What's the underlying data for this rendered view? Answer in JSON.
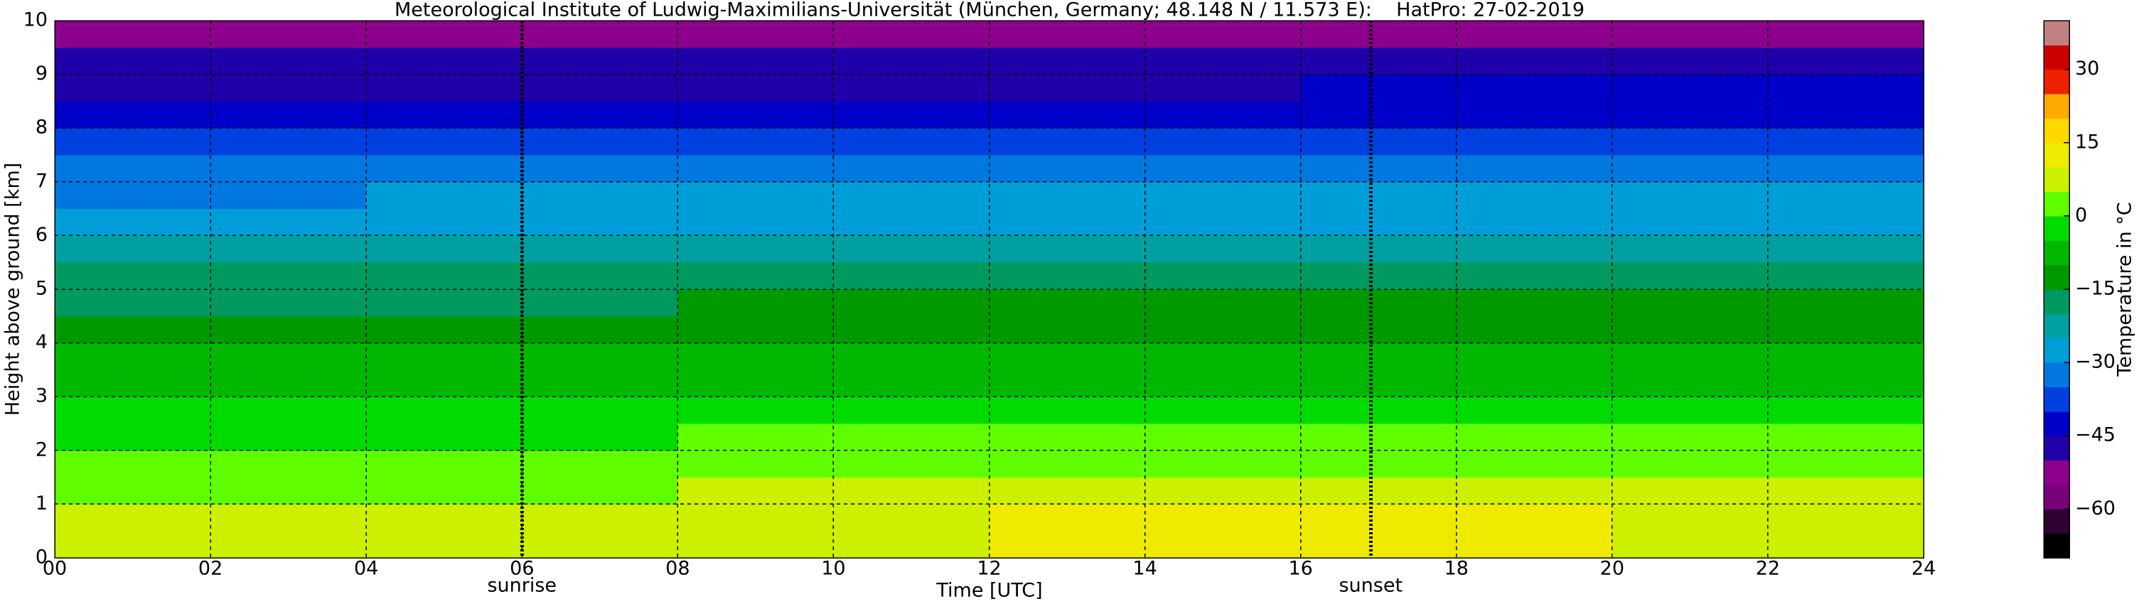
{
  "chart_data": {
    "type": "heatmap",
    "title": "Meteorological Institute of Ludwig-Maximilians-Universität (München, Germany; 48.148 N / 11.573 E):    HatPro: 27-02-2019",
    "x_label": "Time [UTC]",
    "y_label": "Height above ground [km]",
    "x": [
      0,
      4,
      8,
      12,
      16,
      20,
      24
    ],
    "y": [
      0,
      0.5,
      1,
      1.5,
      2,
      2.5,
      3,
      3.5,
      4,
      4.5,
      5,
      5.5,
      6,
      6.5,
      7,
      7.5,
      8,
      8.5,
      9,
      9.5,
      10
    ],
    "values": [
      [
        6,
        6,
        9,
        13,
        11,
        8
      ],
      [
        6,
        6,
        8,
        11,
        10,
        7
      ],
      [
        4,
        4,
        6,
        8,
        7,
        5
      ],
      [
        2,
        2,
        3,
        4,
        3,
        3
      ],
      [
        -1,
        -1,
        0,
        1,
        0,
        0
      ],
      [
        -4,
        -4,
        -3,
        -3,
        -3,
        -3
      ],
      [
        -7,
        -7,
        -6,
        -6,
        -6,
        -6
      ],
      [
        -9,
        -9,
        -9,
        -8,
        -9,
        -9
      ],
      [
        -12,
        -12,
        -12,
        -11,
        -12,
        -12
      ],
      [
        -16,
        -16,
        -15,
        -15,
        -15,
        -15
      ],
      [
        -19,
        -19,
        -18,
        -18,
        -18,
        -18
      ],
      [
        -23,
        -22,
        -22,
        -22,
        -22,
        -22
      ],
      [
        -27,
        -26,
        -26,
        -26,
        -26,
        -26
      ],
      [
        -31,
        -30,
        -30,
        -30,
        -30,
        -30
      ],
      [
        -34,
        -34,
        -34,
        -34,
        -34,
        -34
      ],
      [
        -38,
        -38,
        -38,
        -38,
        -38,
        -38
      ],
      [
        -41,
        -41,
        -41,
        -41,
        -41,
        -41
      ],
      [
        -46,
        -46,
        -46,
        -46,
        -45,
        -45
      ],
      [
        -48,
        -48,
        -48,
        -48,
        -48,
        -48
      ],
      [
        -52,
        -52,
        -52,
        -52,
        -52,
        -52
      ]
    ],
    "xlim": [
      0,
      24
    ],
    "ylim": [
      0,
      10
    ],
    "xticks": [
      {
        "value": 0,
        "label": "00"
      },
      {
        "value": 2,
        "label": "02"
      },
      {
        "value": 4,
        "label": "04"
      },
      {
        "value": 6,
        "label": "06"
      },
      {
        "value": 8,
        "label": "08"
      },
      10,
      12,
      14,
      16,
      18,
      20,
      22,
      24
    ],
    "yticks": [
      0,
      1,
      2,
      3,
      4,
      5,
      6,
      7,
      8,
      9,
      10
    ],
    "grid": true,
    "annotations": [
      {
        "text": "sunrise",
        "x": 6
      },
      {
        "text": "sunset",
        "x": 16.9
      }
    ],
    "colorbar": {
      "label": "Temperature in °C",
      "lim": [
        -70,
        40
      ],
      "ticks": [
        {
          "value": -60,
          "label": "−60"
        },
        {
          "value": -45,
          "label": "−45"
        },
        {
          "value": -30,
          "label": "−30"
        },
        {
          "value": -15,
          "label": "−15"
        },
        0,
        15,
        30
      ],
      "levels": [
        -70,
        -65,
        -60,
        -55,
        -50,
        -45,
        -40,
        -35,
        -30,
        -25,
        -20,
        -15,
        -10,
        -5,
        0,
        5,
        10,
        15,
        20,
        25,
        30,
        35,
        40
      ],
      "colors": [
        "#000000",
        "#300030",
        "#780078",
        "#8c008c",
        "#2000a8",
        "#0000c8",
        "#0040e0",
        "#0078e0",
        "#009ed8",
        "#00a0a0",
        "#009a60",
        "#009a00",
        "#00b800",
        "#00dc00",
        "#60ff00",
        "#ccf000",
        "#eeea00",
        "#ffd800",
        "#ffaa00",
        "#ee2000",
        "#cc0000",
        "#c08080"
      ]
    }
  }
}
